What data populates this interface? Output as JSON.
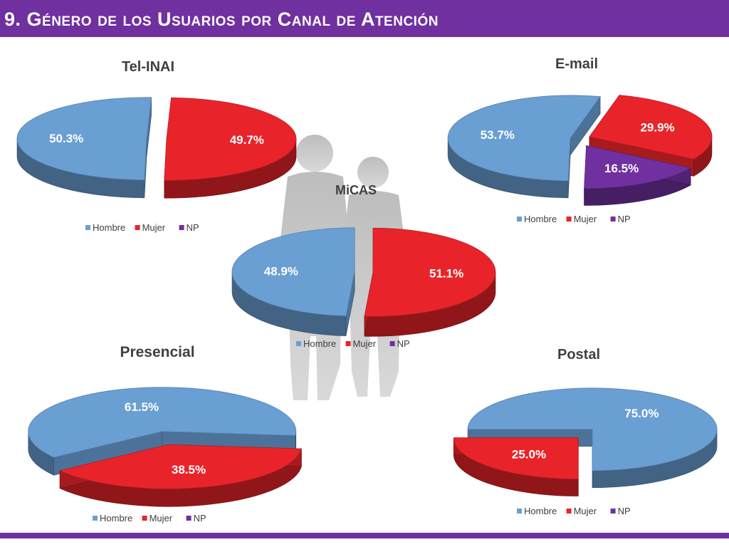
{
  "slide": {
    "title": "9. Género de los Usuarios por Canal de Atención"
  },
  "colors": {
    "header": "#7030a0",
    "hombre": "#6a9fd4",
    "mujer": "#e8242a",
    "np": "#7030a0"
  },
  "chart_data": [
    {
      "type": "pie",
      "title": "Tel-INAI",
      "categories": [
        "Hombre",
        "Mujer",
        "NP"
      ],
      "values": [
        50.3,
        49.7,
        0
      ],
      "labels": [
        "50.3%",
        "49.7%",
        ""
      ],
      "legend": [
        "Hombre",
        "Mujer",
        "NP"
      ]
    },
    {
      "type": "pie",
      "title": "E-mail",
      "categories": [
        "Hombre",
        "Mujer",
        "NP"
      ],
      "values": [
        53.7,
        29.9,
        16.5
      ],
      "labels": [
        "53.7%",
        "29.9%",
        "16.5%"
      ],
      "legend": [
        "Hombre",
        "Mujer",
        "NP"
      ]
    },
    {
      "type": "pie",
      "title": "MiCAS",
      "categories": [
        "Hombre",
        "Mujer",
        "NP"
      ],
      "values": [
        48.9,
        51.1,
        0
      ],
      "labels": [
        "48.9%",
        "51.1%",
        ""
      ],
      "legend": [
        "Hombre",
        "Mujer",
        "NP"
      ]
    },
    {
      "type": "pie",
      "title": "Presencial",
      "categories": [
        "Hombre",
        "Mujer",
        "NP"
      ],
      "values": [
        61.5,
        38.5,
        0
      ],
      "labels": [
        "61.5%",
        "38.5%",
        ""
      ],
      "legend": [
        "Hombre",
        "Mujer",
        "NP"
      ]
    },
    {
      "type": "pie",
      "title": "Postal",
      "categories": [
        "Hombre",
        "Mujer",
        "NP"
      ],
      "values": [
        75.0,
        25.0,
        0
      ],
      "labels": [
        "75.0%",
        "25.0%",
        ""
      ],
      "legend": [
        "Hombre",
        "Mujer",
        "NP"
      ]
    }
  ]
}
